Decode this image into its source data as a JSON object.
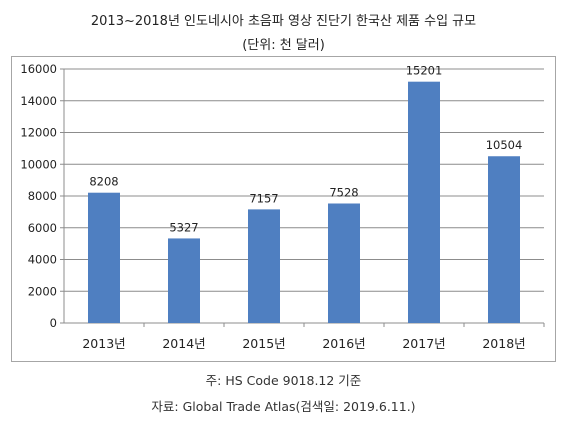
{
  "header": {
    "title": "2013~2018년 인도네시아 초음파 영상 진단기 한국산 제품 수입 규모",
    "unit": "(단위: 천 달러)"
  },
  "footer": {
    "note": "주: HS Code 9018.12 기준",
    "source": "자료: Global Trade Atlas(검색일: 2019.6.11.)"
  },
  "colors": {
    "bar": "#4f7fc1",
    "grid": "#8c8c8c",
    "axis": "#8c8c8c"
  },
  "chart_data": {
    "type": "bar",
    "categories": [
      "2013년",
      "2014년",
      "2015년",
      "2016년",
      "2017년",
      "2018년"
    ],
    "values": [
      8208,
      5327,
      7157,
      7528,
      15201,
      10504
    ],
    "data_labels": [
      "8208",
      "5327",
      "7157",
      "7528",
      "15201",
      "10504"
    ],
    "title": "2013~2018년 인도네시아 초음파 영상 진단기 한국산 제품 수입 규모",
    "xlabel": "",
    "ylabel": "",
    "ylim": [
      0,
      16000
    ],
    "yticks": [
      0,
      2000,
      4000,
      6000,
      8000,
      10000,
      12000,
      14000,
      16000
    ],
    "ytick_labels": [
      "0",
      "2000",
      "4000",
      "6000",
      "8000",
      "10000",
      "12000",
      "14000",
      "16000"
    ],
    "grid": true,
    "legend": "none"
  }
}
